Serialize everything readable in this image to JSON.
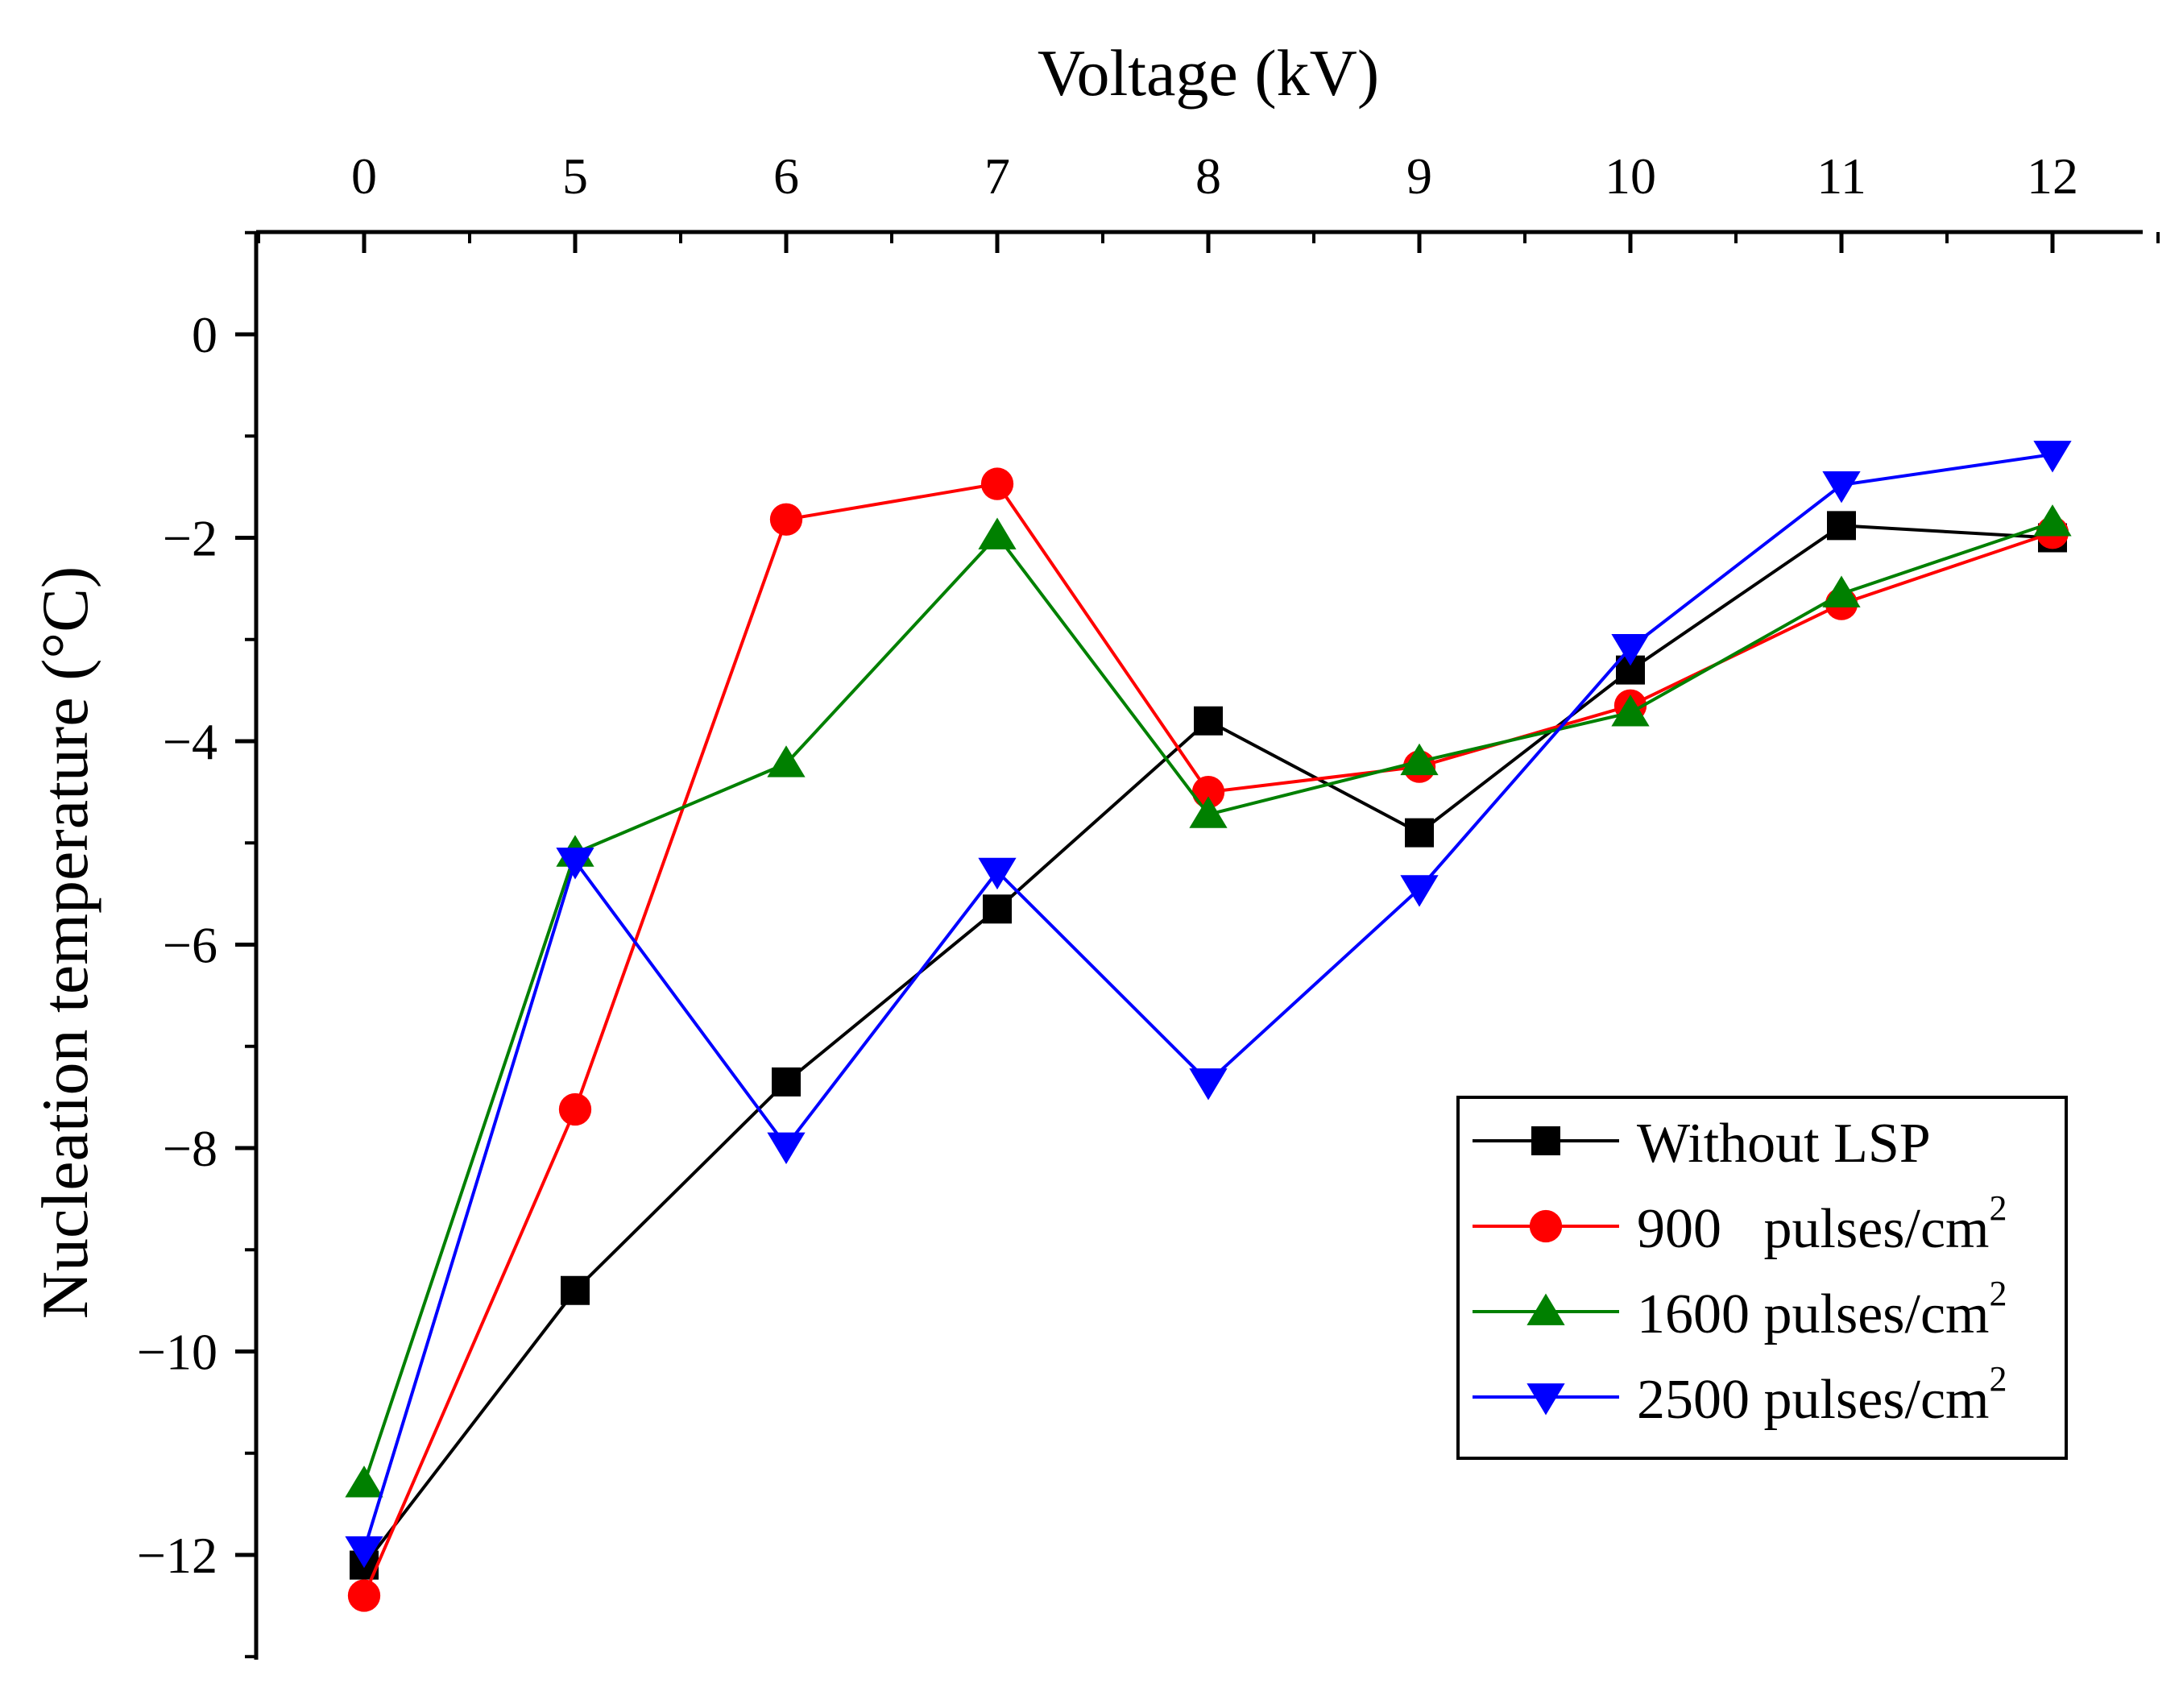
{
  "chart_data": {
    "type": "line",
    "title": "",
    "xlabel": "Voltage (kV)",
    "ylabel": "Nucleation temperature (°C)",
    "x_axis_position": "top",
    "categories": [
      "0",
      "5",
      "6",
      "7",
      "8",
      "9",
      "10",
      "11",
      "12"
    ],
    "ylim": [
      -13,
      1
    ],
    "yticks": [
      0,
      -2,
      -4,
      -6,
      -8,
      -10,
      -12
    ],
    "ytick_labels": [
      "0",
      "−2",
      "−4",
      "−6",
      "−8",
      "−10",
      "−12"
    ],
    "grid": false,
    "legend_position": "bottom-right",
    "series": [
      {
        "name": "Without LSP",
        "color": "#000000",
        "marker": "square",
        "values": [
          -12.1,
          -9.4,
          -7.35,
          -5.65,
          -3.8,
          -4.9,
          -3.3,
          -1.88,
          -2.0
        ]
      },
      {
        "name": "900   pulses/cm",
        "superscript": "2",
        "color": "#ff0000",
        "marker": "circle",
        "values": [
          -12.4,
          -7.62,
          -1.82,
          -1.47,
          -4.5,
          -4.25,
          -3.65,
          -2.65,
          -1.95
        ]
      },
      {
        "name": "1600 pulses/cm",
        "superscript": "2",
        "color": "#008000",
        "marker": "triangle-up",
        "values": [
          -11.3,
          -5.1,
          -4.22,
          -1.98,
          -4.72,
          -4.2,
          -3.72,
          -2.55,
          -1.85
        ]
      },
      {
        "name": "2500 pulses/cm",
        "superscript": "2",
        "color": "#0000ff",
        "marker": "triangle-down",
        "values": [
          -11.95,
          -5.18,
          -7.98,
          -5.28,
          -7.35,
          -5.45,
          -3.08,
          -1.48,
          -1.18
        ]
      }
    ]
  }
}
